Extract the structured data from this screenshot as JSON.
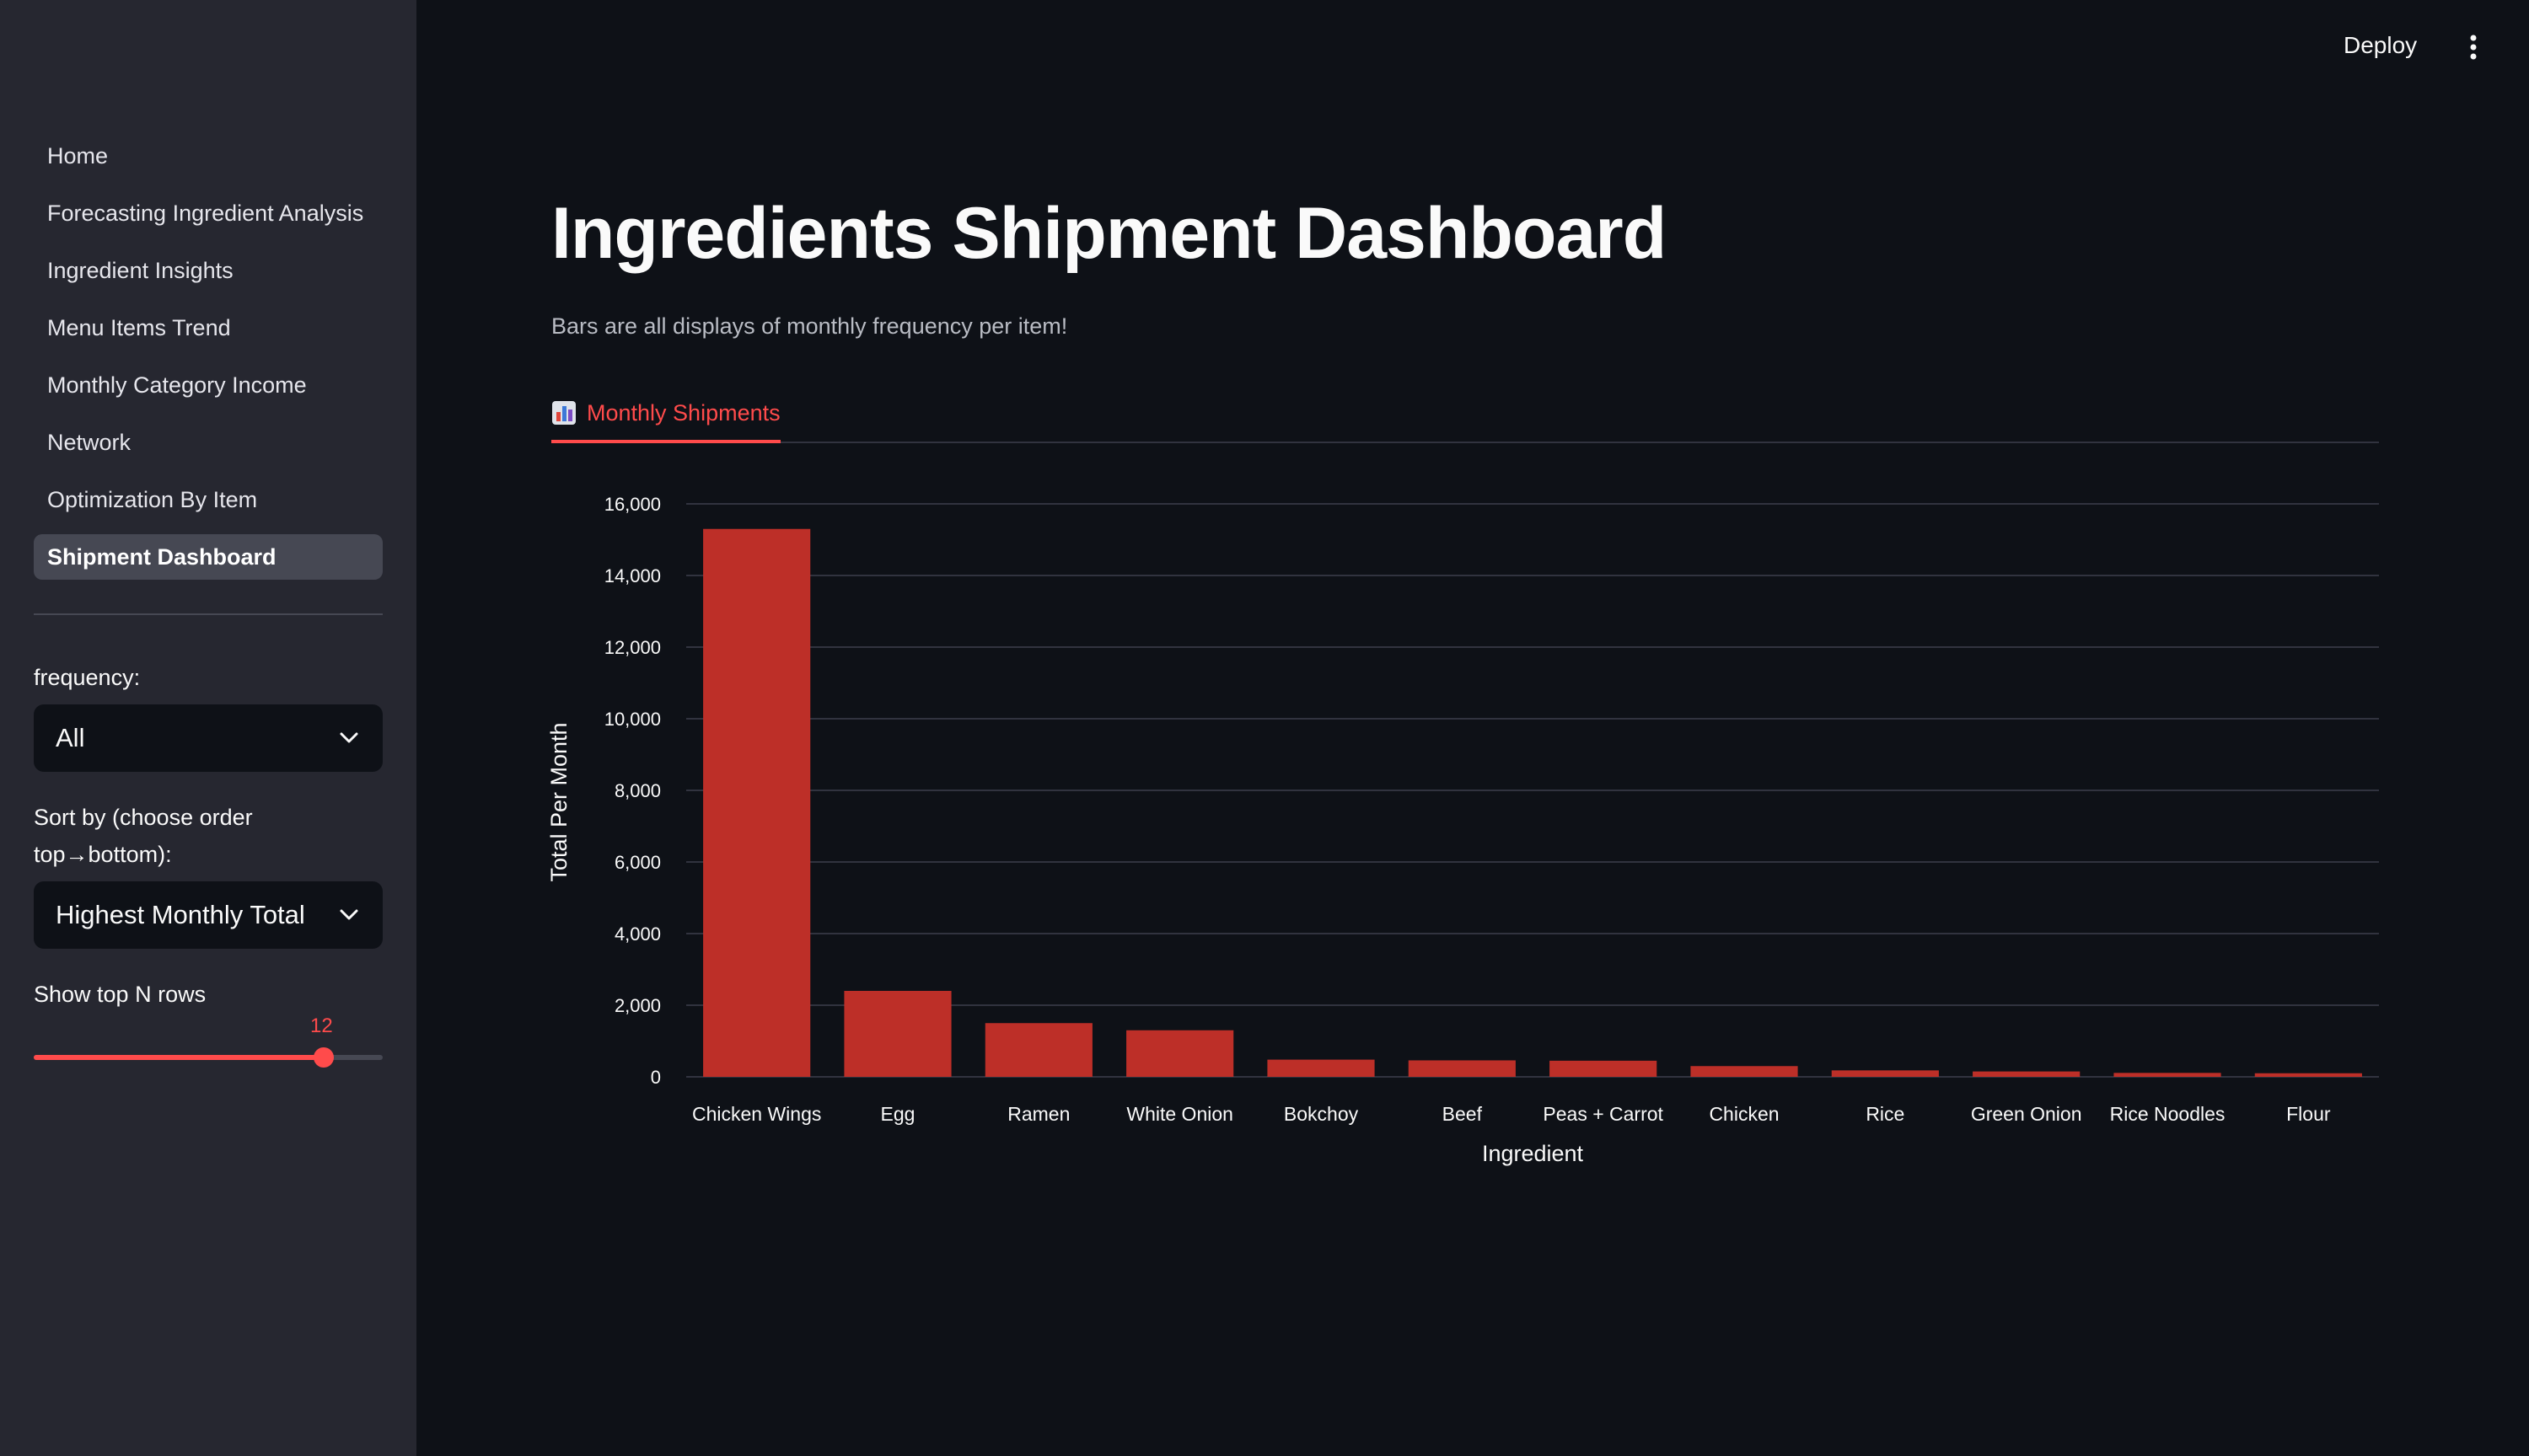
{
  "header": {
    "deploy_label": "Deploy"
  },
  "sidebar": {
    "items": [
      {
        "label": "Home",
        "active": false
      },
      {
        "label": "Forecasting Ingredient Analysis",
        "active": false
      },
      {
        "label": "Ingredient Insights",
        "active": false
      },
      {
        "label": "Menu Items Trend",
        "active": false
      },
      {
        "label": "Monthly Category Income",
        "active": false
      },
      {
        "label": "Network",
        "active": false
      },
      {
        "label": "Optimization By Item",
        "active": false
      },
      {
        "label": "Shipment Dashboard",
        "active": true
      }
    ],
    "frequency": {
      "label": "frequency:",
      "value": "All"
    },
    "sort": {
      "label": "Sort by (choose order top→bottom):",
      "value": "Highest Monthly Total"
    },
    "top_n": {
      "label": "Show top N rows",
      "value": "12",
      "fraction": 0.83
    }
  },
  "main": {
    "title": "Ingredients Shipment Dashboard",
    "subtitle": "Bars are all displays of monthly frequency per item!",
    "tab": {
      "icon": "bar-chart-icon",
      "label": "Monthly Shipments"
    }
  },
  "colors": {
    "bar": "#bd2f28",
    "accent": "#ff4b4b",
    "sidebar_bg": "#262730",
    "app_bg": "#0e1117"
  },
  "chart_data": {
    "type": "bar",
    "categories": [
      "Chicken Wings",
      "Egg",
      "Ramen",
      "White Onion",
      "Bokchoy",
      "Beef",
      "Peas + Carrot",
      "Chicken",
      "Rice",
      "Green Onion",
      "Rice Noodles",
      "Flour"
    ],
    "values": [
      15300,
      2400,
      1500,
      1300,
      480,
      460,
      450,
      300,
      180,
      150,
      110,
      100
    ],
    "xlabel": "Ingredient",
    "ylabel": "Total Per Month",
    "ylim": [
      0,
      16000
    ],
    "yticks": [
      "0",
      "2,000",
      "4,000",
      "6,000",
      "8,000",
      "10,000",
      "12,000",
      "14,000",
      "16,000"
    ],
    "ytick_values": [
      0,
      2000,
      4000,
      6000,
      8000,
      10000,
      12000,
      14000,
      16000
    ],
    "grid": true
  }
}
